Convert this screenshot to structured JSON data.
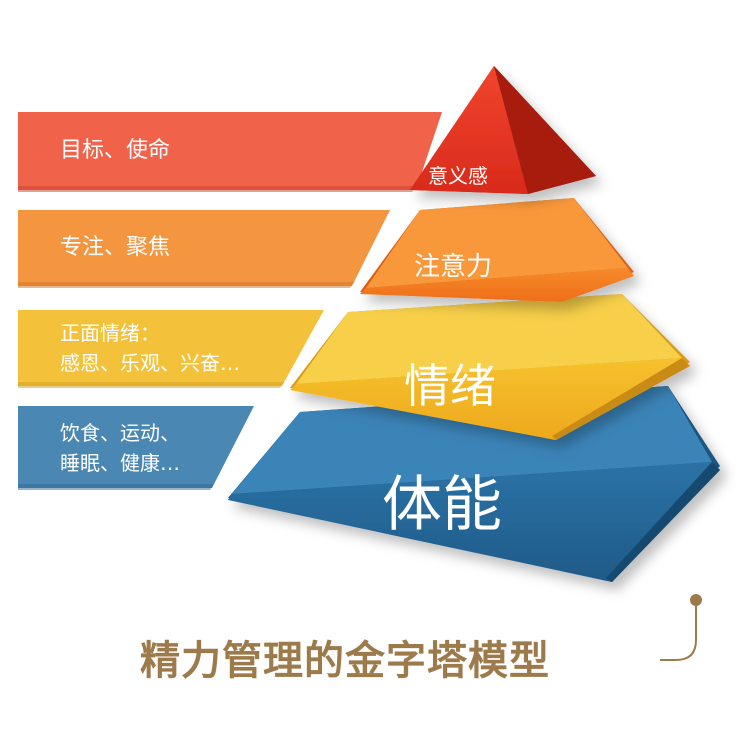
{
  "tiers": [
    {
      "name": "意义感",
      "detail": [
        "目标、使命"
      ],
      "color": "#e8452a"
    },
    {
      "name": "注意力",
      "detail": [
        "专注、聚焦"
      ],
      "color": "#f27c22"
    },
    {
      "name": "情绪",
      "detail": [
        "正面情绪：",
        "感恩、乐观、兴奋…"
      ],
      "color": "#f2b526"
    },
    {
      "name": "体能",
      "detail": [
        "饮食、运动、",
        "睡眠、健康…"
      ],
      "color": "#2f6e9e"
    }
  ],
  "caption": "精力管理的金字塔模型",
  "colors": {
    "caption": "#9c7a4a",
    "band_red": "#f0634a",
    "band_orange": "#f49540",
    "band_yellow": "#f4c23a",
    "band_blue": "#4a87b3"
  }
}
